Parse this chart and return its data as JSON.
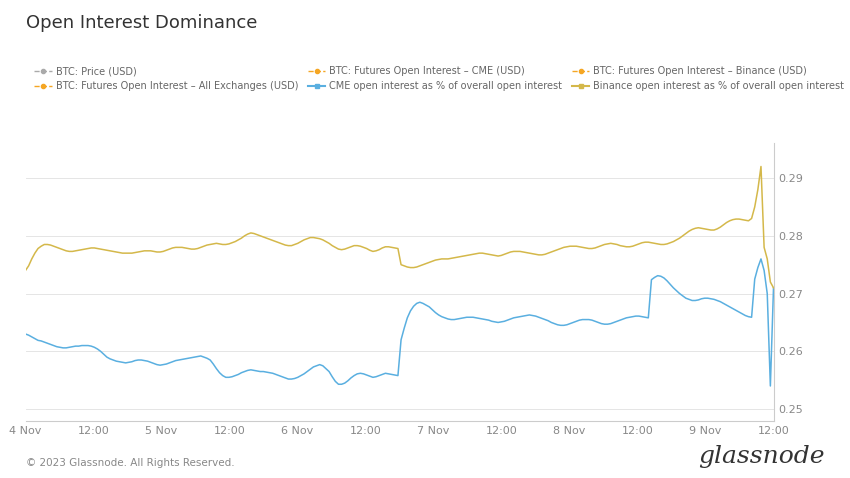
{
  "title": "Open Interest Dominance",
  "ylim": [
    0.248,
    0.296
  ],
  "yticks": [
    0.25,
    0.26,
    0.27,
    0.28,
    0.29
  ],
  "background_color": "#ffffff",
  "plot_bg_color": "#ffffff",
  "grid_color": "#e5e5e5",
  "footer_text": "© 2023 Glassnode. All Rights Reserved.",
  "brand_text": "glassnode",
  "legend_items": [
    {
      "label": "BTC: Price (USD)",
      "color": "#aaaaaa",
      "marker": "o",
      "linestyle": "--"
    },
    {
      "label": "BTC: Futures Open Interest – All Exchanges (USD)",
      "color": "#f5a623",
      "marker": "o",
      "linestyle": "--"
    },
    {
      "label": "BTC: Futures Open Interest – CME (USD)",
      "color": "#f5a623",
      "marker": "o",
      "linestyle": "--"
    },
    {
      "label": "CME open interest as % of overall open interest",
      "color": "#5aafe0",
      "marker": "s",
      "linestyle": "-"
    },
    {
      "label": "BTC: Futures Open Interest – Binance (USD)",
      "color": "#f5a623",
      "marker": "o",
      "linestyle": "--"
    },
    {
      "label": "Binance open interest as % of overall open interest",
      "color": "#d4b84a",
      "marker": "s",
      "linestyle": "-"
    }
  ],
  "cme_color": "#5aafe0",
  "binance_color": "#d4b84a",
  "xtick_labels": [
    "4 Nov",
    "12:00",
    "5 Nov",
    "12:00",
    "6 Nov",
    "12:00",
    "7 Nov",
    "12:00",
    "8 Nov",
    "12:00",
    "9 Nov",
    "12:00"
  ],
  "cme_data": [
    0.263,
    0.2628,
    0.2625,
    0.2622,
    0.2619,
    0.2618,
    0.2616,
    0.2614,
    0.2612,
    0.261,
    0.2608,
    0.2607,
    0.2606,
    0.2606,
    0.2607,
    0.2608,
    0.2609,
    0.2609,
    0.261,
    0.261,
    0.261,
    0.2609,
    0.2607,
    0.2604,
    0.26,
    0.2595,
    0.259,
    0.2587,
    0.2585,
    0.2583,
    0.2582,
    0.2581,
    0.258,
    0.2581,
    0.2582,
    0.2584,
    0.2585,
    0.2585,
    0.2584,
    0.2583,
    0.2581,
    0.2579,
    0.2577,
    0.2576,
    0.2577,
    0.2578,
    0.258,
    0.2582,
    0.2584,
    0.2585,
    0.2586,
    0.2587,
    0.2588,
    0.2589,
    0.259,
    0.2591,
    0.2592,
    0.259,
    0.2588,
    0.2585,
    0.2578,
    0.257,
    0.2563,
    0.2558,
    0.2555,
    0.2555,
    0.2556,
    0.2558,
    0.256,
    0.2563,
    0.2565,
    0.2567,
    0.2568,
    0.2567,
    0.2566,
    0.2565,
    0.2565,
    0.2564,
    0.2563,
    0.2562,
    0.256,
    0.2558,
    0.2556,
    0.2554,
    0.2552,
    0.2552,
    0.2553,
    0.2555,
    0.2558,
    0.2561,
    0.2565,
    0.2569,
    0.2573,
    0.2575,
    0.2577,
    0.2575,
    0.257,
    0.2565,
    0.2556,
    0.2548,
    0.2543,
    0.2543,
    0.2545,
    0.2549,
    0.2554,
    0.2558,
    0.2561,
    0.2562,
    0.2561,
    0.2559,
    0.2557,
    0.2555,
    0.2556,
    0.2558,
    0.256,
    0.2562,
    0.2561,
    0.256,
    0.2559,
    0.2558,
    0.262,
    0.264,
    0.2658,
    0.267,
    0.2678,
    0.2683,
    0.2685,
    0.2683,
    0.268,
    0.2677,
    0.2672,
    0.2667,
    0.2663,
    0.266,
    0.2658,
    0.2656,
    0.2655,
    0.2655,
    0.2656,
    0.2657,
    0.2658,
    0.2659,
    0.2659,
    0.2659,
    0.2658,
    0.2657,
    0.2656,
    0.2655,
    0.2654,
    0.2652,
    0.2651,
    0.265,
    0.2651,
    0.2652,
    0.2654,
    0.2656,
    0.2658,
    0.2659,
    0.266,
    0.2661,
    0.2662,
    0.2663,
    0.2662,
    0.2661,
    0.2659,
    0.2657,
    0.2655,
    0.2653,
    0.265,
    0.2648,
    0.2646,
    0.2645,
    0.2645,
    0.2646,
    0.2648,
    0.265,
    0.2652,
    0.2654,
    0.2655,
    0.2655,
    0.2655,
    0.2654,
    0.2652,
    0.265,
    0.2648,
    0.2647,
    0.2647,
    0.2648,
    0.265,
    0.2652,
    0.2654,
    0.2656,
    0.2658,
    0.2659,
    0.266,
    0.2661,
    0.2661,
    0.266,
    0.2659,
    0.2658,
    0.2724,
    0.2728,
    0.2731,
    0.273,
    0.2727,
    0.2722,
    0.2716,
    0.271,
    0.2705,
    0.27,
    0.2696,
    0.2692,
    0.269,
    0.2688,
    0.2688,
    0.2689,
    0.2691,
    0.2692,
    0.2692,
    0.2691,
    0.269,
    0.2688,
    0.2686,
    0.2683,
    0.268,
    0.2677,
    0.2674,
    0.2671,
    0.2668,
    0.2665,
    0.2662,
    0.266,
    0.2659,
    0.2725,
    0.2745,
    0.276,
    0.274,
    0.27,
    0.254,
    0.271
  ],
  "binance_data": [
    0.274,
    0.2748,
    0.276,
    0.277,
    0.2778,
    0.2782,
    0.2785,
    0.2785,
    0.2784,
    0.2782,
    0.278,
    0.2778,
    0.2776,
    0.2774,
    0.2773,
    0.2773,
    0.2774,
    0.2775,
    0.2776,
    0.2777,
    0.2778,
    0.2779,
    0.2779,
    0.2778,
    0.2777,
    0.2776,
    0.2775,
    0.2774,
    0.2773,
    0.2772,
    0.2771,
    0.277,
    0.277,
    0.277,
    0.277,
    0.2771,
    0.2772,
    0.2773,
    0.2774,
    0.2774,
    0.2774,
    0.2773,
    0.2772,
    0.2772,
    0.2773,
    0.2775,
    0.2777,
    0.2779,
    0.278,
    0.278,
    0.278,
    0.2779,
    0.2778,
    0.2777,
    0.2777,
    0.2778,
    0.278,
    0.2782,
    0.2784,
    0.2785,
    0.2786,
    0.2787,
    0.2786,
    0.2785,
    0.2785,
    0.2786,
    0.2788,
    0.279,
    0.2793,
    0.2796,
    0.28,
    0.2803,
    0.2805,
    0.2804,
    0.2802,
    0.28,
    0.2798,
    0.2796,
    0.2794,
    0.2792,
    0.279,
    0.2788,
    0.2786,
    0.2784,
    0.2783,
    0.2783,
    0.2785,
    0.2787,
    0.279,
    0.2793,
    0.2795,
    0.2797,
    0.2797,
    0.2796,
    0.2795,
    0.2793,
    0.279,
    0.2787,
    0.2783,
    0.278,
    0.2777,
    0.2776,
    0.2777,
    0.2779,
    0.2781,
    0.2783,
    0.2783,
    0.2782,
    0.278,
    0.2778,
    0.2775,
    0.2773,
    0.2774,
    0.2776,
    0.2779,
    0.2781,
    0.2781,
    0.278,
    0.2779,
    0.2778,
    0.275,
    0.2748,
    0.2746,
    0.2745,
    0.2745,
    0.2746,
    0.2748,
    0.275,
    0.2752,
    0.2754,
    0.2756,
    0.2758,
    0.2759,
    0.276,
    0.276,
    0.276,
    0.2761,
    0.2762,
    0.2763,
    0.2764,
    0.2765,
    0.2766,
    0.2767,
    0.2768,
    0.2769,
    0.277,
    0.277,
    0.2769,
    0.2768,
    0.2767,
    0.2766,
    0.2765,
    0.2766,
    0.2768,
    0.277,
    0.2772,
    0.2773,
    0.2773,
    0.2773,
    0.2772,
    0.2771,
    0.277,
    0.2769,
    0.2768,
    0.2767,
    0.2767,
    0.2768,
    0.277,
    0.2772,
    0.2774,
    0.2776,
    0.2778,
    0.278,
    0.2781,
    0.2782,
    0.2782,
    0.2782,
    0.2781,
    0.278,
    0.2779,
    0.2778,
    0.2778,
    0.2779,
    0.2781,
    0.2783,
    0.2785,
    0.2786,
    0.2787,
    0.2786,
    0.2785,
    0.2783,
    0.2782,
    0.2781,
    0.2781,
    0.2782,
    0.2784,
    0.2786,
    0.2788,
    0.2789,
    0.2789,
    0.2788,
    0.2787,
    0.2786,
    0.2785,
    0.2785,
    0.2786,
    0.2788,
    0.279,
    0.2793,
    0.2796,
    0.28,
    0.2804,
    0.2808,
    0.2811,
    0.2813,
    0.2814,
    0.2813,
    0.2812,
    0.2811,
    0.281,
    0.281,
    0.2812,
    0.2815,
    0.2819,
    0.2823,
    0.2826,
    0.2828,
    0.2829,
    0.2829,
    0.2828,
    0.2827,
    0.2826,
    0.283,
    0.285,
    0.288,
    0.292,
    0.278,
    0.276,
    0.272,
    0.271
  ]
}
